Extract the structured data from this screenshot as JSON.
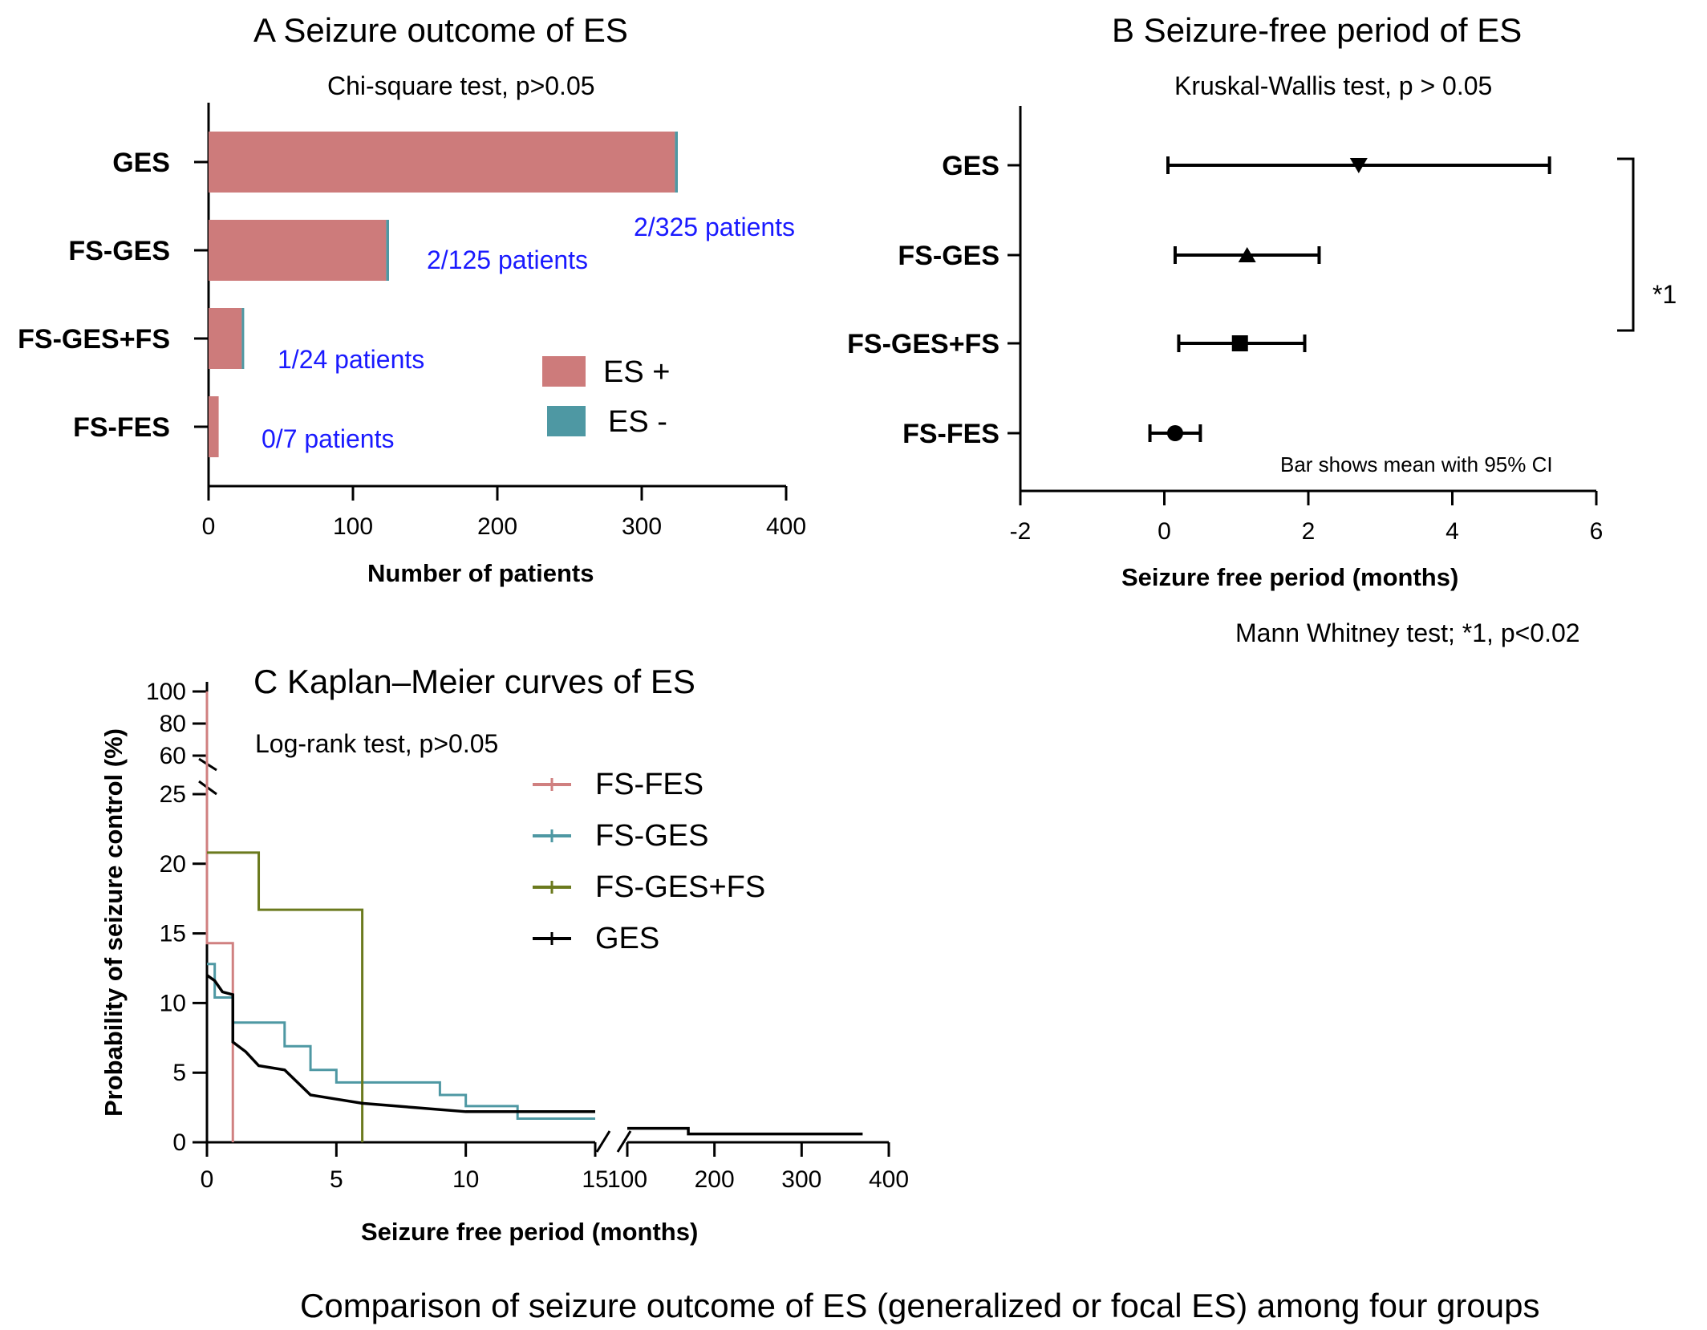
{
  "figure": {
    "caption": "Comparison of seizure outcome of ES (generalized  or focal ES) among four groups"
  },
  "chart_data": [
    {
      "id": "A",
      "type": "bar",
      "orientation": "horizontal",
      "stacked": true,
      "title": "A  Seizure outcome of ES",
      "subtitle": "Chi-square test, p>0.05",
      "xlabel": "Number of patients",
      "xlim": [
        0,
        400
      ],
      "xticks": [
        "0",
        "100",
        "200",
        "300",
        "400"
      ],
      "categories": [
        "GES",
        "FS-GES",
        "FS-GES+FS",
        "FS-FES"
      ],
      "series": [
        {
          "name": "ES +",
          "color": "#cd7b7b",
          "values": [
            323,
            123,
            23,
            7
          ]
        },
        {
          "name": "ES -",
          "color": "#4e98a3",
          "values": [
            2,
            2,
            1,
            0
          ]
        }
      ],
      "data_labels": [
        "2/325 patients",
        "2/125 patients",
        "1/24 patients",
        "0/7 patients"
      ],
      "legend_position": "right"
    },
    {
      "id": "B",
      "type": "scatter",
      "subtype": "mean with 95% CI",
      "title": "B  Seizure-free  period of ES",
      "subtitle": "Kruskal-Wallis test, p > 0.05",
      "xlabel": "Seizure free period (months)",
      "xlim": [
        -2,
        6
      ],
      "xticks": [
        "-2",
        "0",
        "2",
        "4",
        "6"
      ],
      "categories": [
        "GES",
        "FS-GES",
        "FS-GES+FS",
        "FS-FES"
      ],
      "markers": [
        "triangle-down",
        "triangle-up",
        "square",
        "circle"
      ],
      "mean": [
        2.7,
        1.15,
        1.05,
        0.15
      ],
      "ci_low": [
        0.05,
        0.15,
        0.2,
        -0.2
      ],
      "ci_high": [
        5.35,
        2.15,
        1.95,
        0.5
      ],
      "annotation": "Bar shows mean  with 95% CI",
      "bracket_label": "*1",
      "footnote": "Mann Whitney test; *1, p<0.02"
    },
    {
      "id": "C",
      "type": "line",
      "subtype": "kaplan-meier step",
      "title": "C  Kaplan–Meier  curves  of ES",
      "subtitle": "Log-rank test, p>0.05",
      "ylabel": "Probability of seizure control (%)",
      "xlabel": "Seizure free period (months)",
      "x_axis_segments": [
        {
          "range": [
            0,
            15
          ],
          "ticks": [
            "0",
            "5",
            "10",
            "15"
          ]
        },
        {
          "range": [
            100,
            400
          ],
          "ticks": [
            "100",
            "200",
            "300",
            "400"
          ]
        }
      ],
      "y_axis_segments": [
        {
          "range": [
            0,
            25
          ],
          "ticks": [
            "0",
            "5",
            "10",
            "15",
            "20",
            "25"
          ]
        },
        {
          "range": [
            60,
            100
          ],
          "ticks": [
            "60",
            "80",
            "100"
          ]
        }
      ],
      "series": [
        {
          "name": "FS-FES",
          "color": "#d08080",
          "x": [
            0,
            0,
            1,
            1
          ],
          "y": [
            100,
            14.3,
            14.3,
            0
          ]
        },
        {
          "name": "FS-GES",
          "color": "#4e98a3",
          "x": [
            0,
            0.3,
            0.3,
            1,
            1,
            3,
            3,
            4,
            4,
            5,
            5,
            6,
            6,
            9,
            9,
            10,
            10,
            12,
            12,
            15
          ],
          "y": [
            12.8,
            12.8,
            10.4,
            10.4,
            8.6,
            8.6,
            6.9,
            6.9,
            5.2,
            5.2,
            4.3,
            4.3,
            4.3,
            4.3,
            3.4,
            3.4,
            2.6,
            2.6,
            1.7,
            1.7
          ]
        },
        {
          "name": "FS-GES+FS",
          "color": "#6b7a1e",
          "x": [
            0,
            2,
            2,
            6,
            6
          ],
          "y": [
            20.8,
            20.8,
            16.7,
            16.7,
            0
          ]
        },
        {
          "name": "GES",
          "color": "#000000",
          "x": [
            0,
            0.3,
            0.6,
            1.0,
            1.0,
            1.5,
            2.0,
            3.0,
            4.0,
            5.0,
            6.0,
            8.0,
            10.0,
            15.0,
            100,
            170,
            170,
            370,
            370
          ],
          "y": [
            12.0,
            11.6,
            10.8,
            10.6,
            7.2,
            6.5,
            5.5,
            5.2,
            3.4,
            3.1,
            2.8,
            2.5,
            2.2,
            2.2,
            1.0,
            1.0,
            0.6,
            0.6,
            0.6
          ]
        }
      ],
      "legend_position": "top-center"
    }
  ]
}
